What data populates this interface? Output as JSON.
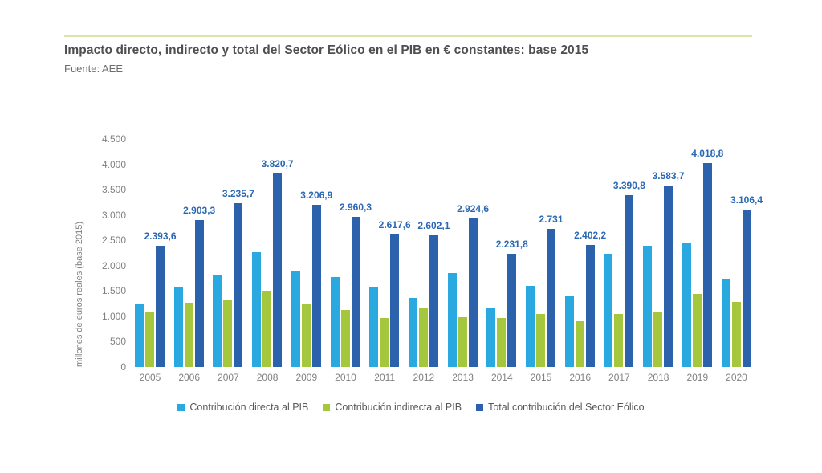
{
  "header": {
    "title": "Impacto directo, indirecto y total del Sector Eólico en el PIB en € constantes: base 2015",
    "source": "Fuente: AEE"
  },
  "chart_data": {
    "type": "bar",
    "title": "Impacto directo, indirecto y total del Sector Eólico en el PIB en € constantes: base 2015",
    "subtitle": "Fuente: AEE",
    "xlabel": "",
    "ylabel": "millones de euros reales (base 2015)",
    "ylim": [
      0,
      4500
    ],
    "grid": false,
    "legend_position": "bottom",
    "ytick_values": [
      0,
      500,
      1000,
      1500,
      2000,
      2500,
      3000,
      3500,
      4000,
      4500
    ],
    "ytick_labels": [
      "0",
      "500",
      "1.000",
      "1.500",
      "2.000",
      "2.500",
      "3.000",
      "3.500",
      "4.000",
      "4.500"
    ],
    "categories": [
      "2005",
      "2006",
      "2007",
      "2008",
      "2009",
      "2010",
      "2011",
      "2012",
      "2013",
      "2014",
      "2015",
      "2016",
      "2017",
      "2018",
      "2019",
      "2020"
    ],
    "series": [
      {
        "name": "Contribución directa al PIB",
        "color": "#29a9df",
        "values": [
          1250,
          1580,
          1830,
          2260,
          1890,
          1780,
          1580,
          1370,
          1860,
          1170,
          1600,
          1410,
          2230,
          2400,
          2460,
          1730
        ]
      },
      {
        "name": "Contribución indirecta al PIB",
        "color": "#a5c73e",
        "values": [
          1090,
          1260,
          1330,
          1500,
          1240,
          1120,
          960,
          1170,
          990,
          970,
          1050,
          900,
          1050,
          1090,
          1450,
          1290
        ]
      },
      {
        "name": "Total contribución del Sector Eólico",
        "color": "#2c62ab",
        "values": [
          2393.6,
          2903.3,
          3235.7,
          3820.7,
          3206.9,
          2960.3,
          2617.6,
          2602.1,
          2924.6,
          2231.8,
          2731,
          2402.2,
          3390.8,
          3583.7,
          4018.8,
          3106.4
        ],
        "labels": [
          "2.393,6",
          "2.903,3",
          "3.235,7",
          "3.820,7",
          "3.206,9",
          "2.960,3",
          "2.617,6",
          "2.602,1",
          "2.924,6",
          "2.231,8",
          "2.731",
          "2.402,2",
          "3.390,8",
          "3.583,7",
          "4.018,8",
          "3.106,4"
        ]
      }
    ],
    "value_label_color": "#2a68b4",
    "axis_text_color": "#808083",
    "accent_rule_color": "#dde3ab"
  }
}
